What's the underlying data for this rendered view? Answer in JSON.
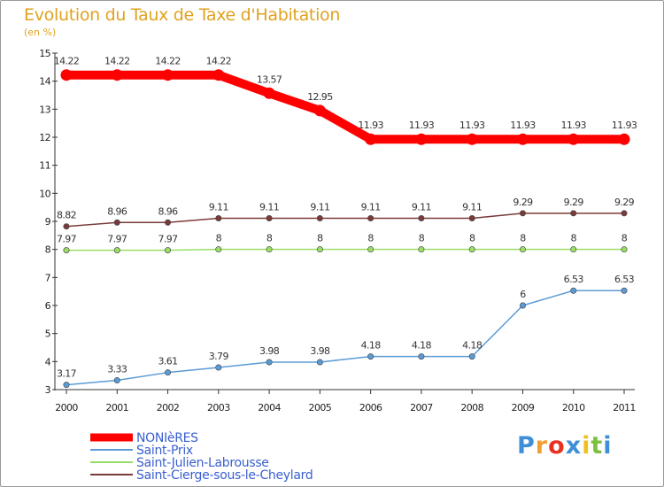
{
  "chart_data": {
    "type": "line",
    "title": "Evolution du Taux de Taxe d'Habitation",
    "subtitle": "(en %)",
    "x": [
      "2000",
      "2001",
      "2002",
      "2003",
      "2004",
      "2005",
      "2006",
      "2007",
      "2008",
      "2009",
      "2010",
      "2011"
    ],
    "ylim": [
      3,
      15
    ],
    "yticks": [
      3,
      4,
      5,
      6,
      7,
      8,
      9,
      10,
      11,
      12,
      13,
      14,
      15
    ],
    "grid": false,
    "legend_position": "bottom-left",
    "series": [
      {
        "name": "NONIèRES",
        "color": "#ff0000",
        "width": 10,
        "values": [
          14.22,
          14.22,
          14.22,
          14.22,
          13.57,
          12.95,
          11.93,
          11.93,
          11.93,
          11.93,
          11.93,
          11.93
        ],
        "labels": [
          "14.22",
          "14.22",
          "14.22",
          "14.22",
          "13.57",
          "12.95",
          "11.93",
          "11.93",
          "11.93",
          "11.93",
          "11.93",
          "11.93"
        ]
      },
      {
        "name": "Saint-Prix",
        "color": "#5b9bd5",
        "width": 1.5,
        "values": [
          3.17,
          3.33,
          3.61,
          3.79,
          3.98,
          3.98,
          4.18,
          4.18,
          4.18,
          6,
          6.53,
          6.53
        ],
        "labels": [
          "3.17",
          "3.33",
          "3.61",
          "3.79",
          "3.98",
          "3.98",
          "4.18",
          "4.18",
          "4.18",
          "6",
          "6.53",
          "6.53"
        ]
      },
      {
        "name": "Saint-Julien-Labrousse",
        "color": "#99dd66",
        "width": 1.5,
        "values": [
          7.97,
          7.97,
          7.97,
          8,
          8,
          8,
          8,
          8,
          8,
          8,
          8,
          8
        ],
        "labels": [
          "7.97",
          "7.97",
          "7.97",
          "8",
          "8",
          "8",
          "8",
          "8",
          "8",
          "8",
          "8",
          "8"
        ]
      },
      {
        "name": "Saint-Cierge-sous-le-Cheylard",
        "color": "#7a3a3a",
        "width": 1.5,
        "values": [
          8.82,
          8.96,
          8.96,
          9.11,
          9.11,
          9.11,
          9.11,
          9.11,
          9.11,
          9.29,
          9.29,
          9.29
        ],
        "labels": [
          "8.82",
          "8.96",
          "8.96",
          "9.11",
          "9.11",
          "9.11",
          "9.11",
          "9.11",
          "9.11",
          "9.29",
          "9.29",
          "9.29"
        ]
      }
    ]
  },
  "logo": {
    "letters": [
      "P",
      "r",
      "o",
      "x",
      "i",
      "t",
      "i"
    ],
    "colors": [
      "#3f8fd8",
      "#f0a030",
      "#e83020",
      "#3f8fd8",
      "#f0c020",
      "#7cc040",
      "#3f8fd8"
    ]
  }
}
